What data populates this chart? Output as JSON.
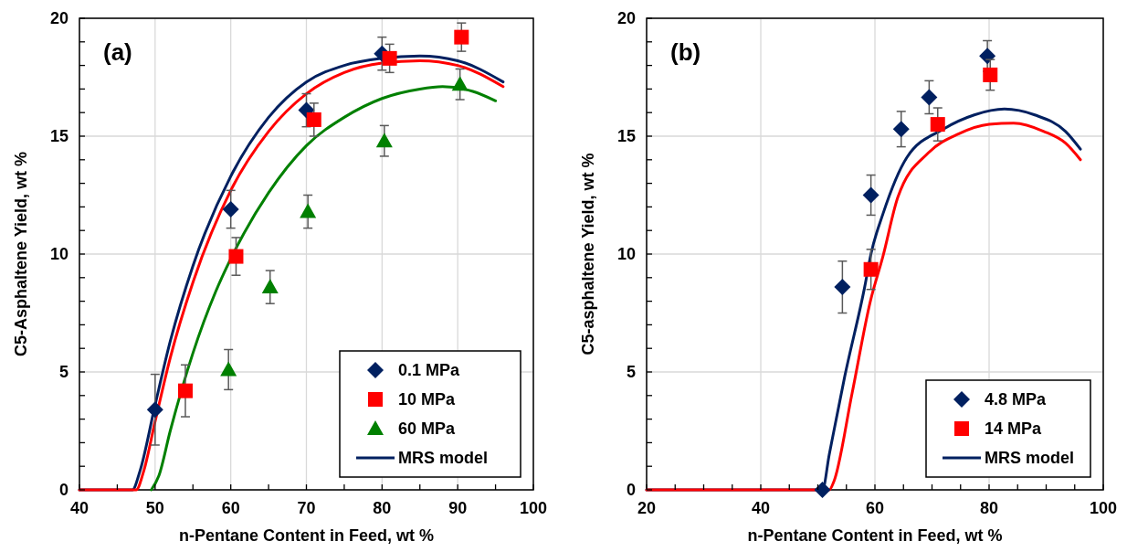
{
  "chart_data": [
    {
      "type": "scatter",
      "xlabel": "n-Pentane Content in Feed, wt %",
      "ylabel": "C5-Asphaltene Yield, wt %",
      "annotations": [
        "(a)"
      ],
      "xlim": [
        40,
        100
      ],
      "xticks": [
        40,
        {
          "value": 45,
          "label": null
        },
        50,
        {
          "value": 55,
          "label": null
        },
        60,
        {
          "value": 65,
          "label": null
        },
        70,
        {
          "value": 75,
          "label": null
        },
        80,
        {
          "value": 85,
          "label": null
        },
        90,
        {
          "value": 95,
          "label": null
        },
        100
      ],
      "ylim": [
        0,
        20
      ],
      "yticks": [
        0,
        {
          "value": 1,
          "label": null
        },
        {
          "value": 2,
          "label": null
        },
        {
          "value": 3,
          "label": null
        },
        {
          "value": 4,
          "label": null
        },
        5,
        {
          "value": 6,
          "label": null
        },
        {
          "value": 7,
          "label": null
        },
        {
          "value": 8,
          "label": null
        },
        {
          "value": 9,
          "label": null
        },
        10,
        {
          "value": 11,
          "label": null
        },
        {
          "value": 12,
          "label": null
        },
        {
          "value": 13,
          "label": null
        },
        {
          "value": 14,
          "label": null
        },
        15,
        {
          "value": 16,
          "label": null
        },
        {
          "value": 17,
          "label": null
        },
        {
          "value": 18,
          "label": null
        },
        {
          "value": 19,
          "label": null
        },
        20
      ],
      "grid": true,
      "legend": "bottom right",
      "series": [
        {
          "type": "line",
          "name": "MRS model",
          "color": "#002060",
          "marker": "none",
          "line_style": "solid",
          "x": [
            40,
            47,
            48,
            50,
            52,
            55,
            60,
            65,
            70,
            75,
            80,
            85,
            90,
            96
          ],
          "values": [
            0,
            0,
            0.8,
            3.6,
            6.3,
            9.5,
            13.3,
            15.8,
            17.3,
            18,
            18.3,
            18.4,
            18.2,
            17.3
          ]
        },
        {
          "type": "line",
          "color": "#ff0000",
          "marker": "none",
          "line_style": "solid",
          "x": [
            40,
            47.5,
            48.5,
            50,
            52,
            55,
            60,
            65,
            70,
            75,
            80,
            85,
            90,
            96
          ],
          "values": [
            0,
            0,
            0.8,
            2.9,
            5.6,
            8.8,
            12.7,
            15.2,
            16.8,
            17.7,
            18.1,
            18.2,
            18,
            17.1
          ]
        },
        {
          "type": "line",
          "color": "#008000",
          "marker": "none",
          "line_style": "solid",
          "x": [
            49.5,
            50.5,
            52,
            55,
            58,
            60,
            65,
            70,
            75,
            80,
            85,
            88,
            92,
            95
          ],
          "values": [
            0,
            0.6,
            2.5,
            5.8,
            8.4,
            9.8,
            12.6,
            14.6,
            15.8,
            16.6,
            17,
            17.1,
            16.9,
            16.5
          ]
        },
        {
          "type": "scatter",
          "name": "0.1 MPa",
          "color": "#002060",
          "marker": "diamond",
          "x": [
            50,
            60,
            70,
            80
          ],
          "values": [
            3.4,
            11.9,
            16.1,
            18.5
          ],
          "errors": [
            1.5,
            0.8,
            0.7,
            0.7
          ]
        },
        {
          "type": "scatter",
          "name": "10 MPa",
          "color": "#ff0000",
          "marker": "square",
          "x": [
            54,
            60.7,
            71,
            81,
            90.5
          ],
          "values": [
            4.2,
            9.9,
            15.7,
            18.3,
            19.2
          ],
          "errors": [
            1.1,
            0.8,
            0.7,
            0.6,
            0.6
          ]
        },
        {
          "type": "scatter",
          "name": "60 MPa",
          "color": "#008000",
          "marker": "triangle",
          "x": [
            59.7,
            65.2,
            70.2,
            80.3,
            90.3
          ],
          "values": [
            5.1,
            8.6,
            11.8,
            14.8,
            17.2
          ],
          "errors": [
            0.85,
            0.7,
            0.7,
            0.65,
            0.65
          ]
        }
      ]
    },
    {
      "type": "scatter",
      "xlabel": "n-Pentane Content in Feed, wt %",
      "ylabel": "C5-asphaltene Yield, wt %",
      "annotations": [
        "(b)"
      ],
      "xlim": [
        20,
        100
      ],
      "xticks": [
        20,
        {
          "value": 25,
          "label": null
        },
        {
          "value": 30,
          "label": null
        },
        {
          "value": 35,
          "label": null
        },
        40,
        {
          "value": 45,
          "label": null
        },
        {
          "value": 50,
          "label": null
        },
        {
          "value": 55,
          "label": null
        },
        60,
        {
          "value": 65,
          "label": null
        },
        {
          "value": 70,
          "label": null
        },
        {
          "value": 75,
          "label": null
        },
        80,
        {
          "value": 85,
          "label": null
        },
        {
          "value": 90,
          "label": null
        },
        {
          "value": 95,
          "label": null
        },
        100
      ],
      "ylim": [
        0,
        20
      ],
      "yticks": [
        0,
        {
          "value": 1,
          "label": null
        },
        {
          "value": 2,
          "label": null
        },
        {
          "value": 3,
          "label": null
        },
        {
          "value": 4,
          "label": null
        },
        5,
        {
          "value": 6,
          "label": null
        },
        {
          "value": 7,
          "label": null
        },
        {
          "value": 8,
          "label": null
        },
        {
          "value": 9,
          "label": null
        },
        10,
        {
          "value": 11,
          "label": null
        },
        {
          "value": 12,
          "label": null
        },
        {
          "value": 13,
          "label": null
        },
        {
          "value": 14,
          "label": null
        },
        15,
        {
          "value": 16,
          "label": null
        },
        {
          "value": 17,
          "label": null
        },
        {
          "value": 18,
          "label": null
        },
        {
          "value": 19,
          "label": null
        },
        20
      ],
      "grid": true,
      "legend": "bottom right",
      "series": [
        {
          "type": "line",
          "name": "MRS model",
          "color": "#002060",
          "marker": "none",
          "line_style": "solid",
          "x": [
            20,
            50.8,
            52,
            54.7,
            58.2,
            59.3,
            61.4,
            65.6,
            72,
            77.4,
            82.7,
            88,
            93.4,
            96
          ],
          "values": [
            0,
            0,
            1.5,
            4.8,
            8.6,
            10,
            11.7,
            14.1,
            15.3,
            15.9,
            16.15,
            15.9,
            15.2,
            14.45
          ]
        },
        {
          "type": "line",
          "color": "#ff0000",
          "marker": "none",
          "line_style": "solid",
          "x": [
            20,
            52,
            52.8,
            56,
            59.2,
            61.4,
            64,
            69.4,
            74.7,
            80,
            84.3,
            89.6,
            93.4,
            96
          ],
          "values": [
            0,
            0,
            0.35,
            4.1,
            8,
            9.9,
            12.4,
            14.3,
            15.1,
            15.5,
            15.55,
            15.2,
            14.7,
            14
          ]
        },
        {
          "type": "scatter",
          "name": "4.8 MPa",
          "color": "#002060",
          "marker": "diamond",
          "x": [
            50.8,
            54.3,
            59.3,
            64.6,
            69.5,
            79.7
          ],
          "values": [
            0,
            8.6,
            12.5,
            15.3,
            16.65,
            18.4
          ],
          "errors": [
            null,
            1.1,
            0.85,
            0.75,
            0.7,
            0.65
          ]
        },
        {
          "type": "scatter",
          "name": "14 MPa",
          "color": "#ff0000",
          "marker": "square",
          "x": [
            59.3,
            71,
            80.2
          ],
          "values": [
            9.35,
            15.5,
            17.6
          ],
          "errors": [
            0.85,
            0.7,
            0.65
          ]
        }
      ]
    }
  ]
}
